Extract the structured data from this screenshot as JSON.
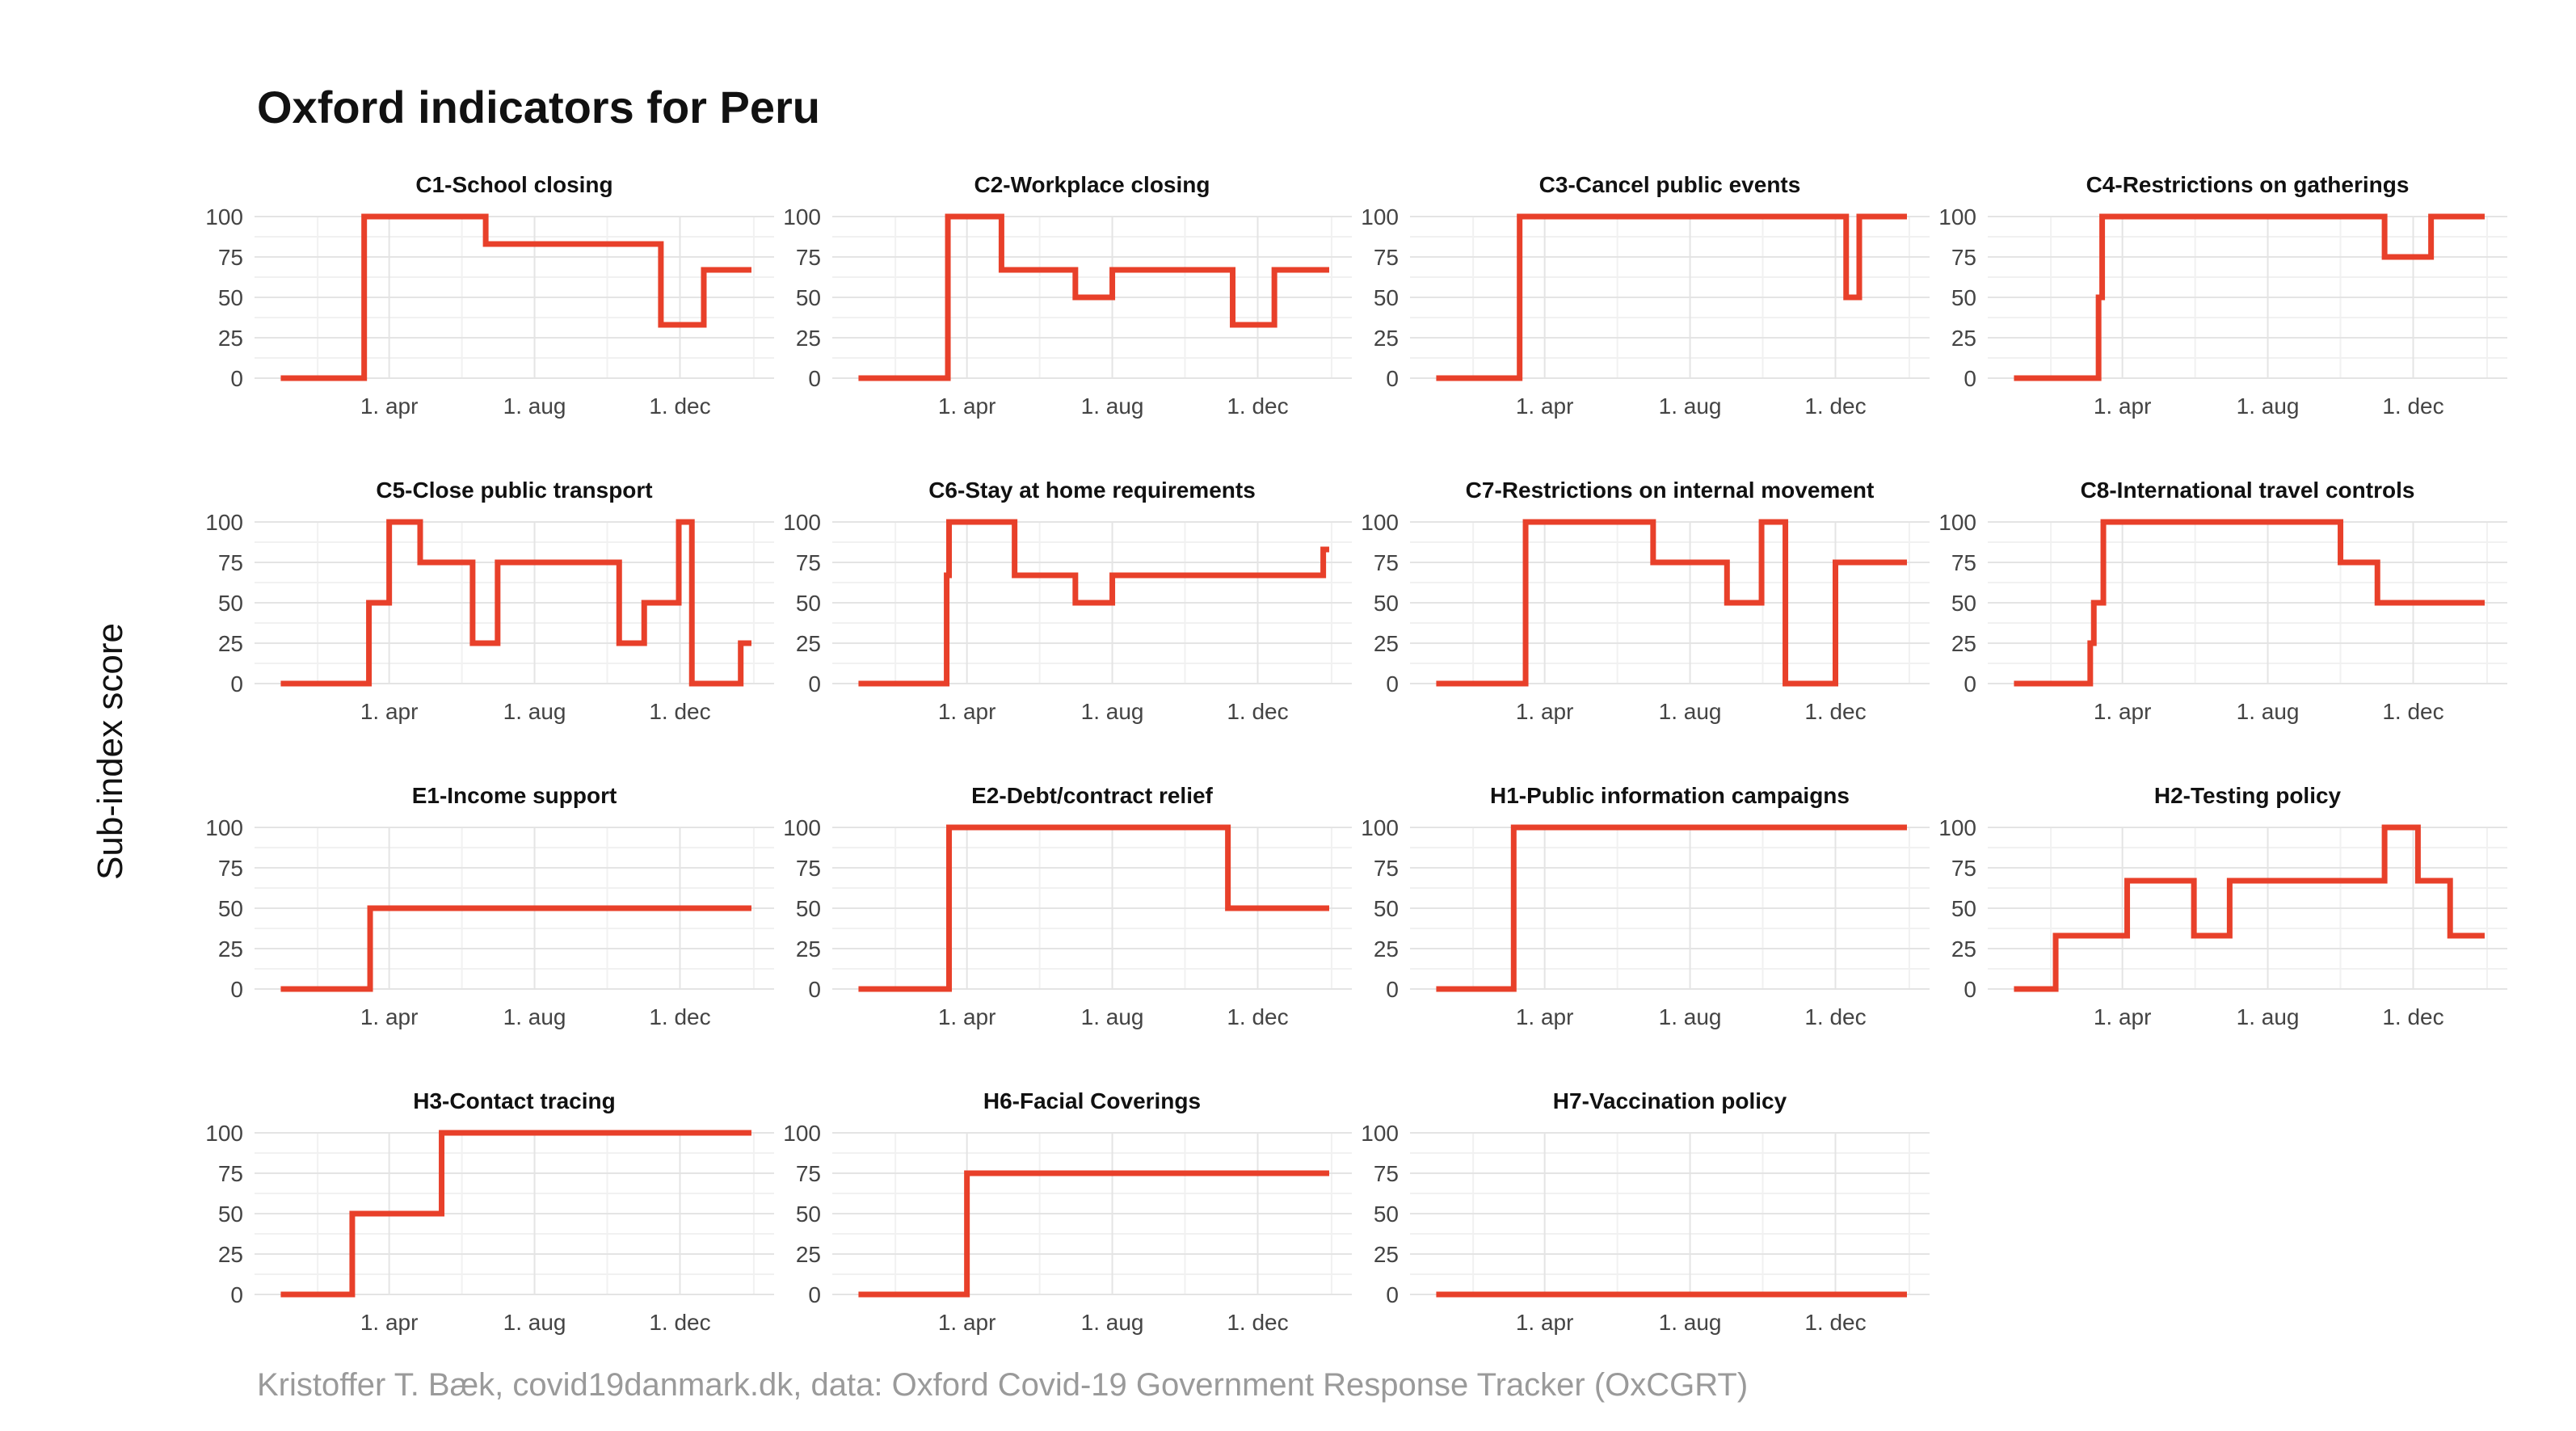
{
  "title": "Oxford indicators for Peru",
  "y_axis_label": "Sub-index score",
  "caption": "Kristoffer T. Bæk, covid19danmark.dk, data: Oxford Covid-19 Government Response Tracker (OxCGRT)",
  "line_color": "#e8402a",
  "chart_data": [
    {
      "type": "line",
      "title": "C1-School closing",
      "x": [
        "2020-01-01",
        "2020-03-11",
        "2020-06-21",
        "2020-11-15",
        "2020-12-21",
        "2021-01-30"
      ],
      "y": [
        0,
        100,
        83,
        33,
        67,
        67
      ],
      "step": "post"
    },
    {
      "type": "line",
      "title": "C2-Workplace closing",
      "x": [
        "2020-01-01",
        "2020-03-16",
        "2020-04-30",
        "2020-07-01",
        "2020-08-01",
        "2020-11-10",
        "2020-12-15",
        "2021-01-30"
      ],
      "y": [
        0,
        100,
        67,
        50,
        67,
        33,
        67,
        67
      ],
      "step": "post"
    },
    {
      "type": "line",
      "title": "C3-Cancel public events",
      "x": [
        "2020-01-01",
        "2020-03-11",
        "2020-12-10",
        "2020-12-21",
        "2021-01-30"
      ],
      "y": [
        0,
        100,
        50,
        100,
        100
      ],
      "step": "post"
    },
    {
      "type": "line",
      "title": "C4-Restrictions on gatherings",
      "x": [
        "2020-01-01",
        "2020-03-12",
        "2020-03-15",
        "2020-11-07",
        "2020-12-16",
        "2021-01-30"
      ],
      "y": [
        0,
        50,
        100,
        75,
        100,
        100
      ],
      "step": "post"
    },
    {
      "type": "line",
      "title": "C5-Close public transport",
      "x": [
        "2020-01-01",
        "2020-03-15",
        "2020-04-01",
        "2020-04-27",
        "2020-06-10",
        "2020-07-01",
        "2020-10-11",
        "2020-11-01",
        "2020-11-30",
        "2020-12-11",
        "2021-01-21",
        "2021-01-30"
      ],
      "y": [
        0,
        50,
        100,
        75,
        25,
        75,
        25,
        50,
        100,
        0,
        25,
        25
      ],
      "step": "post"
    },
    {
      "type": "line",
      "title": "C6-Stay at home requirements",
      "x": [
        "2020-01-01",
        "2020-03-15",
        "2020-03-17",
        "2020-05-11",
        "2020-07-01",
        "2020-08-01",
        "2021-01-25",
        "2021-01-30"
      ],
      "y": [
        0,
        67,
        100,
        67,
        50,
        67,
        83,
        83
      ],
      "step": "post"
    },
    {
      "type": "line",
      "title": "C7-Restrictions on internal movement",
      "x": [
        "2020-01-01",
        "2020-03-16",
        "2020-07-01",
        "2020-09-01",
        "2020-09-30",
        "2020-10-20",
        "2020-12-01",
        "2021-01-25",
        "2021-01-30"
      ],
      "y": [
        0,
        100,
        75,
        50,
        100,
        0,
        75,
        75,
        75
      ],
      "step": "post"
    },
    {
      "type": "line",
      "title": "C8-International travel controls",
      "x": [
        "2020-01-01",
        "2020-03-05",
        "2020-03-08",
        "2020-03-16",
        "2020-10-01",
        "2020-11-01",
        "2021-01-30"
      ],
      "y": [
        0,
        25,
        50,
        100,
        75,
        50,
        50
      ],
      "step": "post"
    },
    {
      "type": "line",
      "title": "E1-Income support",
      "x": [
        "2020-01-01",
        "2020-03-16",
        "2021-01-30"
      ],
      "y": [
        0,
        50,
        50
      ],
      "step": "post"
    },
    {
      "type": "line",
      "title": "E2-Debt/contract relief",
      "x": [
        "2020-01-01",
        "2020-03-17",
        "2020-11-06",
        "2021-01-30"
      ],
      "y": [
        0,
        100,
        50,
        50
      ],
      "step": "post"
    },
    {
      "type": "line",
      "title": "H1-Public information campaigns",
      "x": [
        "2020-01-01",
        "2020-03-06",
        "2021-01-30"
      ],
      "y": [
        0,
        100,
        100
      ],
      "step": "post"
    },
    {
      "type": "line",
      "title": "H2-Testing policy",
      "x": [
        "2020-01-01",
        "2020-02-05",
        "2020-04-05",
        "2020-05-31",
        "2020-06-30",
        "2020-11-07",
        "2020-12-05",
        "2021-01-01",
        "2021-01-30"
      ],
      "y": [
        0,
        33,
        67,
        33,
        67,
        100,
        67,
        33,
        33
      ],
      "step": "post"
    },
    {
      "type": "line",
      "title": "H3-Contact tracing",
      "x": [
        "2020-01-01",
        "2020-03-01",
        "2020-05-15",
        "2021-01-30"
      ],
      "y": [
        0,
        50,
        100,
        100
      ],
      "step": "post"
    },
    {
      "type": "line",
      "title": "H6-Facial Coverings",
      "x": [
        "2020-01-01",
        "2020-04-01",
        "2021-01-30"
      ],
      "y": [
        0,
        75,
        75
      ],
      "step": "post"
    },
    {
      "type": "line",
      "title": "H7-Vaccination policy",
      "x": [
        "2020-01-01",
        "2021-01-30"
      ],
      "y": [
        0,
        0
      ],
      "step": "post"
    }
  ],
  "y_ticks": [
    "0",
    "25",
    "50",
    "75",
    "100"
  ],
  "x_ticks": [
    {
      "date": "2020-04-01",
      "label": "1. apr"
    },
    {
      "date": "2020-08-01",
      "label": "1. aug"
    },
    {
      "date": "2020-12-01",
      "label": "1. dec"
    }
  ],
  "x_minor_ticks": [
    "2020-02-01",
    "2020-06-01",
    "2020-10-01",
    "2021-02-01"
  ],
  "x_range": [
    "2019-12-10",
    "2021-02-18"
  ],
  "y_range": [
    0,
    100
  ],
  "grid": true
}
